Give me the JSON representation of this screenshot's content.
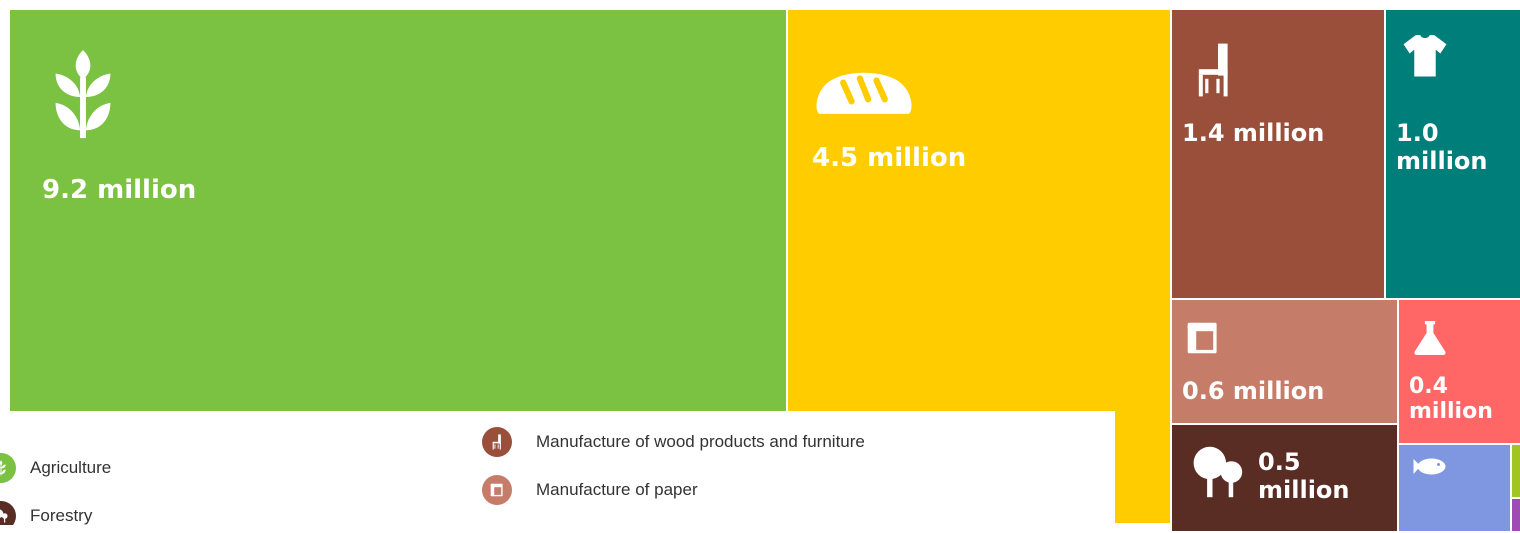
{
  "chart_data": {
    "type": "treemap",
    "tiles": [
      {
        "id": "agriculture",
        "value_label": "9.2 million",
        "value": 9.2,
        "icon": "wheat-icon",
        "color": "#7BC142"
      },
      {
        "id": "food",
        "value_label": "4.5 million",
        "value": 4.5,
        "icon": "bread-icon",
        "color": "#FFCC00"
      },
      {
        "id": "wood-furniture",
        "value_label": "1.4 million",
        "value": 1.4,
        "icon": "chair-icon",
        "color": "#9A4F3B"
      },
      {
        "id": "textiles",
        "value_label": "1.0\nmillion",
        "value": 1.0,
        "icon": "tshirt-icon",
        "color": "#007E7A"
      },
      {
        "id": "paper",
        "value_label": "0.6 million",
        "value": 0.6,
        "icon": "paper-roll-icon",
        "color": "#C57D6A"
      },
      {
        "id": "chemicals",
        "value_label": "0.4\nmillion",
        "value": 0.4,
        "icon": "flask-icon",
        "color": "#FF6666"
      },
      {
        "id": "forestry",
        "value_label": "0.5\nmillion",
        "value": 0.5,
        "icon": "trees-icon",
        "color": "#5A2D24"
      },
      {
        "id": "fishing",
        "value_label": "",
        "icon": "fish-icon",
        "color": "#7F97E0"
      },
      {
        "id": "small-green",
        "value_label": "",
        "icon": "",
        "color": "#A3C523"
      },
      {
        "id": "small-purple",
        "value_label": "",
        "icon": "",
        "color": "#9E4CB3"
      }
    ],
    "unit": "million"
  },
  "legend": {
    "items": [
      {
        "id": "agriculture",
        "label": "Agriculture",
        "color": "#7BC142",
        "icon": "wheat-icon"
      },
      {
        "id": "forestry",
        "label": "Forestry",
        "color": "#5A2D24",
        "icon": "trees-icon"
      },
      {
        "id": "wood-furniture",
        "label": "Manufacture of wood products and furniture",
        "color": "#9A4F3B",
        "icon": "chair-icon"
      },
      {
        "id": "paper",
        "label": "Manufacture of paper",
        "color": "#C57D6A",
        "icon": "paper-roll-icon"
      }
    ]
  }
}
